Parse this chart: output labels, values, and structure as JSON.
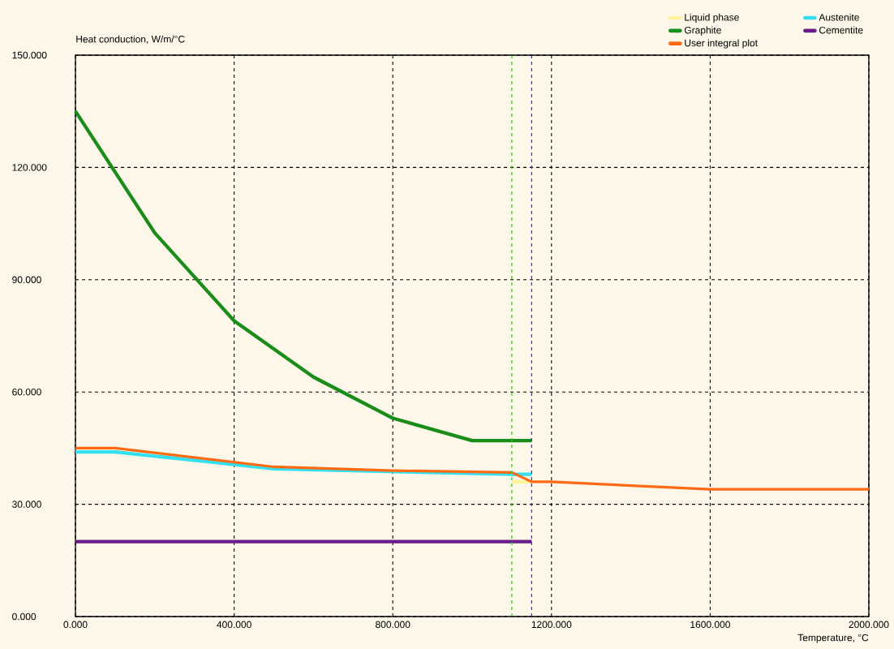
{
  "chart_data": {
    "type": "line",
    "ylabel": "Heat conduction, W/m/°C",
    "xlabel": "Temperature, °C",
    "xlim": [
      0,
      2000
    ],
    "ylim": [
      0,
      150
    ],
    "xticks": [
      {
        "value": 0,
        "label": "0.000"
      },
      {
        "value": 400,
        "label": "400.000"
      },
      {
        "value": 800,
        "label": "800.000"
      },
      {
        "value": 1200,
        "label": "1200.000"
      },
      {
        "value": 1600,
        "label": "1600.000"
      },
      {
        "value": 2000,
        "label": "2000.000"
      }
    ],
    "yticks": [
      {
        "value": 0,
        "label": "0.000"
      },
      {
        "value": 30,
        "label": "30.000"
      },
      {
        "value": 60,
        "label": "60.000"
      },
      {
        "value": 90,
        "label": "90.000"
      },
      {
        "value": 120,
        "label": "120.000"
      },
      {
        "value": 150,
        "label": "150.000"
      }
    ],
    "grid": true,
    "legend": "top right",
    "marker": "none",
    "line_style": "solid",
    "series": [
      {
        "name": "Liquid phase",
        "color": "#fff59a",
        "x": [
          1100,
          1150
        ],
        "values": [
          36,
          36
        ]
      },
      {
        "name": "Austenite",
        "color": "#33e0f0",
        "x": [
          0,
          100,
          500,
          1100,
          1150
        ],
        "values": [
          44,
          44,
          39.5,
          38,
          38
        ]
      },
      {
        "name": "Graphite",
        "color": "#1a8c1a",
        "x": [
          0,
          200,
          400,
          600,
          800,
          1000,
          1150
        ],
        "values": [
          135,
          102.5,
          79,
          64,
          53,
          47,
          47
        ]
      },
      {
        "name": "Cementite",
        "color": "#6a1b8a",
        "x": [
          0,
          1150
        ],
        "values": [
          20,
          20
        ]
      },
      {
        "name": "User integral plot",
        "color": "#ff6a13",
        "x": [
          0,
          100,
          500,
          800,
          1100,
          1150,
          1200,
          1600,
          2000
        ],
        "values": [
          45,
          45,
          40,
          39,
          38.5,
          36,
          36,
          34,
          34
        ]
      }
    ],
    "ref_lines": [
      {
        "axis": "x",
        "value": 1100,
        "color": "#22cc22",
        "line_style": "dashed"
      },
      {
        "axis": "x",
        "value": 1150,
        "color": "#2233dd",
        "line_style": "dashed"
      }
    ]
  }
}
